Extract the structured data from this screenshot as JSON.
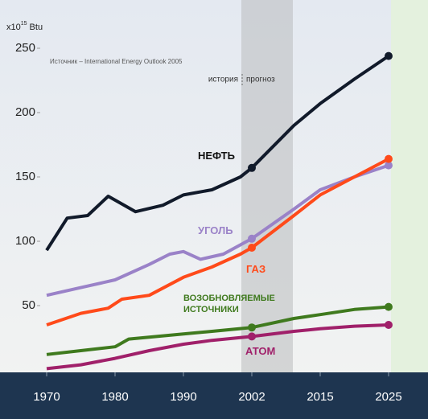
{
  "chart_data": {
    "type": "line",
    "y_unit": "x10",
    "y_unit_exp": "15",
    "y_unit_suffix": "Btu",
    "source": "Источник – International Energy Outlook 2005",
    "history_label": "история",
    "forecast_label": "прогноз",
    "xlim": [
      1970,
      2025
    ],
    "xticks": [
      1970,
      1980,
      1990,
      2002,
      2015,
      2025
    ],
    "ylim": [
      0,
      250
    ],
    "yticks": [
      50,
      100,
      150,
      200,
      250
    ],
    "series": [
      {
        "name": "НЕФТЬ",
        "color": "#111a2a",
        "x": [
          1970,
          1973,
          1976,
          1979,
          1983,
          1987,
          1990,
          1995,
          2000,
          2002,
          2010,
          2015,
          2020,
          2025
        ],
        "values": [
          93,
          118,
          120,
          135,
          123,
          128,
          136,
          140,
          150,
          157,
          190,
          207,
          226,
          244
        ]
      },
      {
        "name": "УГОЛЬ",
        "color": "#9a82c8",
        "x": [
          1970,
          1975,
          1980,
          1985,
          1988,
          1990,
          1993,
          1997,
          2002,
          2010,
          2015,
          2020,
          2025
        ],
        "values": [
          58,
          64,
          70,
          82,
          90,
          92,
          86,
          90,
          102,
          125,
          140,
          150,
          159
        ]
      },
      {
        "name": "ГАЗ",
        "color": "#ff4a1a",
        "x": [
          1970,
          1975,
          1979,
          1981,
          1985,
          1990,
          1995,
          2000,
          2002,
          2010,
          2015,
          2020,
          2025
        ],
        "values": [
          35,
          44,
          48,
          55,
          58,
          72,
          80,
          90,
          95,
          120,
          136,
          150,
          164
        ]
      },
      {
        "name": "ВОЗОБНОВЛЯЕМЫЕ ИСТОЧНИКИ",
        "color": "#3f7a1e",
        "x": [
          1970,
          1975,
          1980,
          1982,
          1990,
          1995,
          2002,
          2010,
          2015,
          2020,
          2025
        ],
        "values": [
          12,
          15,
          18,
          24,
          28,
          30,
          33,
          40,
          43,
          47,
          49
        ]
      },
      {
        "name": "АТОМ",
        "color": "#a0206a",
        "x": [
          1970,
          1975,
          1980,
          1985,
          1990,
          1995,
          2002,
          2010,
          2015,
          2020,
          2025
        ],
        "values": [
          1,
          4,
          9,
          15,
          20,
          23,
          26,
          30,
          32,
          34,
          35
        ]
      }
    ]
  }
}
